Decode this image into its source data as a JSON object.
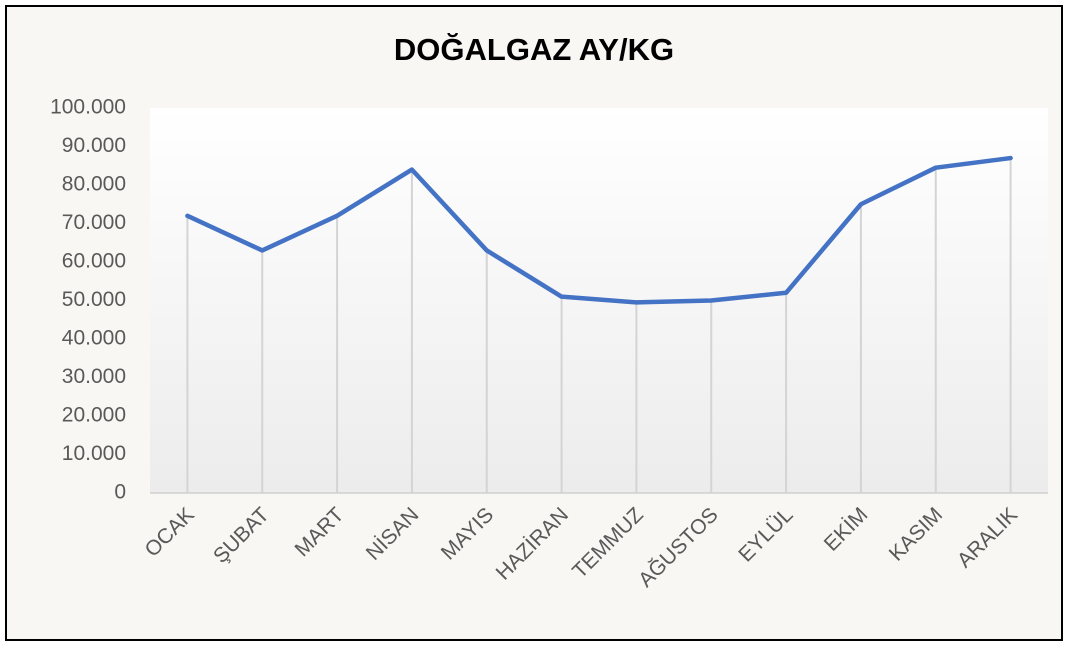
{
  "chart_data": {
    "type": "line",
    "title": "DOĞALGAZ AY/KG",
    "categories": [
      "OCAK",
      "ŞUBAT",
      "MART",
      "NİSAN",
      "MAYIS",
      "HAZİRAN",
      "TEMMUZ",
      "AĞUSTOS",
      "EYLÜL",
      "EKİM",
      "KASIM",
      "ARALIK"
    ],
    "values": [
      72000,
      63000,
      72000,
      84000,
      63000,
      51000,
      49500,
      50000,
      52000,
      75000,
      84500,
      87000
    ],
    "color": "#4472c4",
    "ylim": [
      0,
      100000
    ],
    "yticks": [
      0,
      {
        "value": 10000,
        "label": "10.000"
      },
      {
        "value": 20000,
        "label": "20.000"
      },
      {
        "value": 30000,
        "label": "30.000"
      },
      {
        "value": 40000,
        "label": "40.000"
      },
      {
        "value": 50000,
        "label": "50.000"
      },
      {
        "value": 60000,
        "label": "60.000"
      },
      {
        "value": 70000,
        "label": "70.000"
      },
      {
        "value": 80000,
        "label": "80.000"
      },
      {
        "value": 90000,
        "label": "90.000"
      },
      {
        "value": 100000,
        "label": "100.000"
      }
    ],
    "drop_lines": true
  }
}
